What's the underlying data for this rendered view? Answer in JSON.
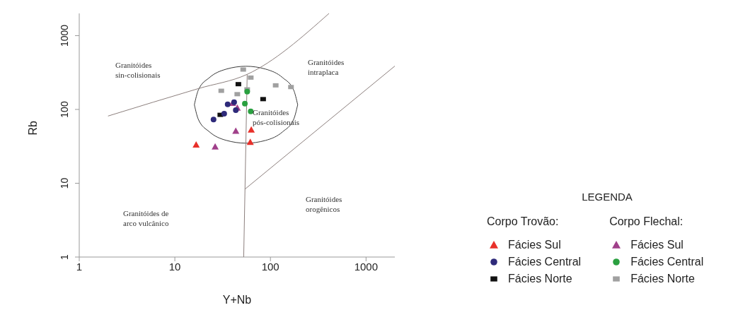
{
  "chart_data": {
    "type": "scatter",
    "xlabel": "Y+Nb",
    "ylabel": "Rb",
    "legend_title": "LEGENDA",
    "legend": "right",
    "log": "xy",
    "xlim": [
      1,
      2000
    ],
    "xticks": [
      1,
      10,
      100,
      1000
    ],
    "ylim": [
      1,
      2000
    ],
    "yticks": [
      1,
      10,
      100,
      1000
    ],
    "series": [
      {
        "name": "Fácies Sul",
        "color": "#e8302a",
        "marker": "triangle",
        "x": [
          16.7,
          63,
          61.5
        ],
        "values": [
          33.2,
          53,
          36
        ]
      },
      {
        "name": "Fácies Central",
        "color": "#2e2a7a",
        "marker": "circle",
        "x": [
          25.4,
          32.8,
          35.7,
          41.7,
          43.4
        ],
        "values": [
          73,
          87.5,
          117.5,
          125,
          98
        ]
      },
      {
        "name": "Fácies Norte",
        "color": "#111111",
        "marker": "square",
        "x": [
          46.2,
          29.9,
          83.8
        ],
        "values": [
          220,
          84.5,
          138
        ]
      },
      {
        "name": "Fácies Sul",
        "color": "#a0408a",
        "marker": "triangle",
        "x": [
          26.4,
          43.4,
          40.1,
          45
        ],
        "values": [
          31.3,
          51,
          122,
          105
        ]
      },
      {
        "name": "Fácies Central",
        "color": "#2aa040",
        "marker": "circle",
        "x": [
          57.1,
          54,
          62.2
        ],
        "values": [
          174,
          120,
          94
        ]
      },
      {
        "name": "Fácies Norte",
        "color": "#a0a0a0",
        "marker": "square",
        "x": [
          51.9,
          62.2,
          30.6,
          45,
          57.1,
          113.5,
          164
        ],
        "values": [
          347,
          270,
          179,
          161,
          187,
          212,
          201
        ]
      },
      {
        "type": "line",
        "color": "#8c7f7d",
        "marker": "none",
        "line_style": "solid",
        "x": [
          2,
          17.7,
          57.1,
          410
        ],
        "values": [
          81.4,
          192,
          299,
          2000
        ]
      },
      {
        "type": "line",
        "color": "#8c7f7d",
        "marker": "none",
        "line_style": "solid",
        "x": [
          52.5,
          57.1
        ],
        "values": [
          1,
          299
        ]
      },
      {
        "type": "line",
        "color": "#8c7f7d",
        "marker": "none",
        "line_style": "solid",
        "x": [
          54,
          2000
        ],
        "values": [
          8.3,
          387
        ]
      },
      {
        "type": "line",
        "color": "#3a3a3a",
        "marker": "none",
        "line_style": "solid",
        "x": [
          16.0,
          17.6,
          23.0,
          34.5,
          55.5,
          89.2,
          133.9,
          175,
          192.8
        ],
        "values": [
          115.8,
          182.8,
          270,
          351.6,
          384.6,
          351.6,
          270,
          182.8,
          115.8
        ]
      },
      {
        "type": "line",
        "color": "#3a3a3a",
        "marker": "none",
        "line_style": "solid",
        "x": [
          16.0,
          17.6,
          23.0,
          34.5,
          55.5,
          89.2,
          133.9,
          175,
          192.8
        ],
        "values": [
          115.8,
          73.5,
          49.7,
          38.1,
          34.9,
          38.1,
          49.7,
          73.5,
          115.8
        ]
      }
    ],
    "annotations": [
      "Granitóides\nsin-colisionais",
      "Granitóides\nintraplaca",
      "Granitóides\npós-colisionais",
      "Granitóides\norogênicos",
      "Granitóides de\narco vulcânico",
      "Corpo Trovão:",
      "Corpo Flechal:"
    ]
  }
}
